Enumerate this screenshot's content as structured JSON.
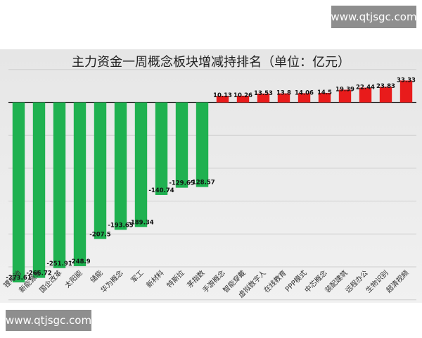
{
  "watermark_top": "www.qtjsgc.com",
  "watermark_bottom": "www.qtjsgc.com",
  "chart_data": {
    "type": "bar",
    "title": "主力资金一周概念板块增减持排名（单位：亿元）",
    "categories": [
      "锂电池",
      "新能源车",
      "国企改革",
      "太阳能",
      "储能",
      "华为概念",
      "军工",
      "新材料",
      "特斯拉",
      "茅指数",
      "手游概念",
      "智能穿戴",
      "虚拟数字人",
      "在线教育",
      "PPP模式",
      "中芯概念",
      "装配建筑",
      "远程办公",
      "生物识别",
      "超清视频"
    ],
    "values": [
      -273.61,
      -266.72,
      -251.91,
      -248.9,
      -207.5,
      -193.65,
      -189.34,
      -140.74,
      -129.65,
      -128.57,
      10.13,
      10.26,
      13.53,
      13.8,
      14.06,
      14.5,
      19.39,
      22.44,
      23.83,
      33.33
    ],
    "labels": [
      "-273.61",
      "-266.72",
      "-251.91",
      "-248.9",
      "-207.5",
      "-193.65",
      "-189.34",
      "-140.74",
      "-129.65",
      "-128.57",
      "10.13",
      "10.26",
      "13.53",
      "13.8",
      "14.06",
      "14.5",
      "19.39",
      "22.44",
      "23.83",
      "33.33"
    ],
    "ylim": [
      -300,
      50
    ],
    "grid": true,
    "colors": {
      "negative": "#1fb150",
      "positive": "#e81b1b",
      "grid": "#cfcfcf",
      "axis": "#222222"
    }
  }
}
